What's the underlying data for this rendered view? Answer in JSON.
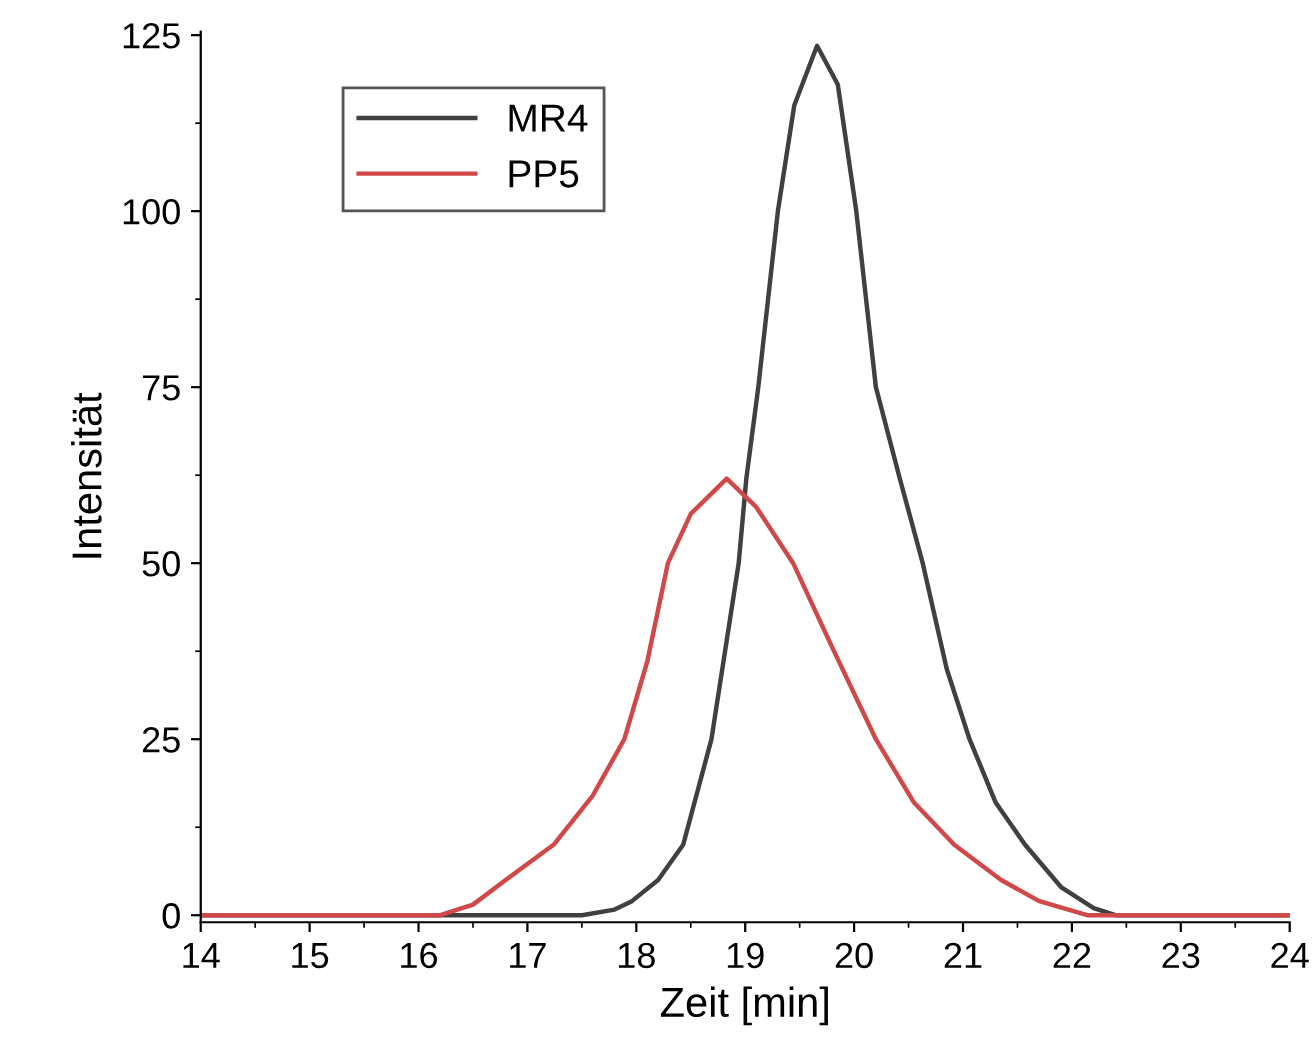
{
  "chart_data": {
    "type": "line",
    "xlabel": "Zeit [min]",
    "ylabel": "Intensität",
    "xlim": [
      14,
      24
    ],
    "ylim": [
      -1,
      125.5
    ],
    "xticks": [
      14,
      15,
      16,
      17,
      18,
      19,
      20,
      21,
      22,
      23,
      24
    ],
    "yticks": [
      0,
      25,
      50,
      75,
      100,
      125
    ],
    "grid": false,
    "legend": "top left",
    "marker": "none",
    "line_style": "solid",
    "series": [
      {
        "name": "MR4",
        "color": "#404040",
        "x": [
          14,
          15,
          16,
          17,
          17.5,
          17.8,
          17.96,
          18.2,
          18.43,
          18.69,
          18.94,
          19.01,
          19.12,
          19.3,
          19.45,
          19.66,
          19.85,
          20.02,
          20.2,
          20.42,
          20.63,
          20.85,
          21.06,
          21.3,
          21.57,
          21.9,
          22.2,
          22.4,
          23,
          24
        ],
        "values": [
          0,
          0,
          0,
          0,
          0,
          0.8,
          2,
          5,
          10,
          25,
          50,
          62,
          75,
          100,
          115,
          123.5,
          118,
          100,
          75,
          62,
          50,
          35,
          25,
          16,
          10,
          4,
          1,
          0,
          0,
          0
        ]
      },
      {
        "name": "PP5",
        "color": "#d04848",
        "x": [
          14,
          15,
          16,
          16.2,
          16.5,
          16.8,
          17.24,
          17.6,
          17.89,
          18.1,
          18.29,
          18.5,
          18.83,
          19.1,
          19.44,
          19.8,
          20.2,
          20.55,
          20.92,
          21.35,
          21.7,
          22.14,
          23,
          24
        ],
        "values": [
          0,
          0,
          0,
          0,
          1.5,
          5,
          10,
          17,
          25,
          36,
          50,
          57,
          62,
          58,
          50,
          38,
          25,
          16,
          10,
          5,
          2,
          0,
          0,
          0
        ]
      }
    ]
  }
}
